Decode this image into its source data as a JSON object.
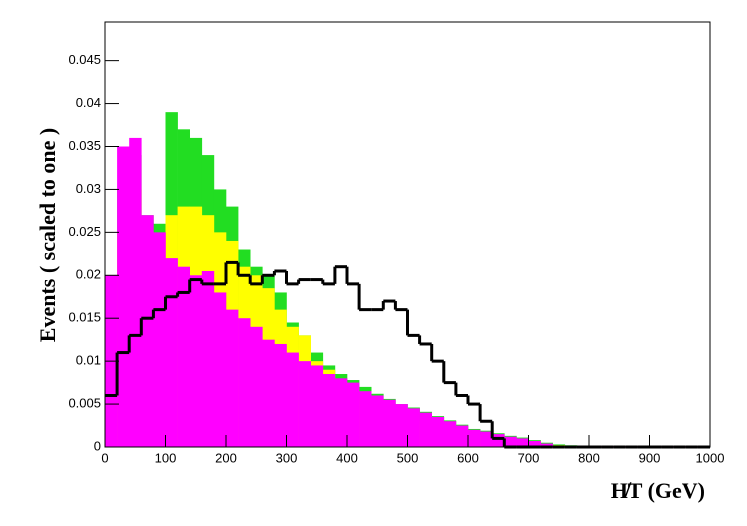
{
  "chart_data": {
    "type": "histogram",
    "y_label": "Events  ( scaled to one )",
    "x_label": "H̸T (GeV)",
    "bins": [
      0,
      20,
      40,
      60,
      80,
      100,
      120,
      140,
      160,
      180,
      200,
      220,
      240,
      260,
      280,
      300,
      320,
      340,
      360,
      380,
      400,
      420,
      440,
      460,
      480,
      500,
      520,
      540,
      560,
      580,
      600,
      620,
      640,
      660,
      680,
      700,
      720,
      740,
      760,
      780,
      800,
      820,
      840,
      860,
      880,
      900,
      920,
      940,
      960,
      980,
      1000
    ],
    "series": [
      {
        "name": "green",
        "color": "#22dd22",
        "style": "fill",
        "values": [
          0.012,
          0.03,
          0.034,
          0.027,
          0.026,
          0.039,
          0.037,
          0.036,
          0.034,
          0.03,
          0.028,
          0.023,
          0.021,
          0.02,
          0.018,
          0.0145,
          0.013,
          0.011,
          0.0095,
          0.0085,
          0.0078,
          0.007,
          0.0062,
          0.0056,
          0.005,
          0.0046,
          0.0041,
          0.0036,
          0.0031,
          0.0026,
          0.0021,
          0.0019,
          0.0016,
          0.0013,
          0.0011,
          0.0008,
          0.0005,
          0.0003,
          0.0002,
          0.0001,
          0.0001,
          0.0001,
          0.0001,
          0.0001,
          0.0001,
          0.0001,
          0.0001,
          0.0001,
          0.0001,
          0.0001
        ]
      },
      {
        "name": "yellow",
        "color": "#ffff00",
        "style": "fill",
        "values": [
          0.01,
          0.025,
          0.03,
          0.024,
          0.023,
          0.027,
          0.028,
          0.028,
          0.027,
          0.025,
          0.024,
          0.021,
          0.02,
          0.0185,
          0.016,
          0.014,
          0.013,
          0.01,
          0.009,
          0.0075,
          0.006,
          0.005,
          0.0045,
          0.004,
          0.0035,
          0.003,
          0.0027,
          0.0023,
          0.002,
          0.0017,
          0.0014,
          0.0012,
          0.001,
          0.0008,
          0.0006,
          0.0004,
          0.0003,
          0.0002,
          0.0001,
          0.0001,
          0.0001,
          0.0001,
          0.0001,
          0.0001,
          0.0001,
          0.0001,
          0.0001,
          0.0001,
          0.0001,
          0.0001
        ]
      },
      {
        "name": "magenta",
        "color": "#ff00ff",
        "style": "fill",
        "values": [
          0.02,
          0.035,
          0.036,
          0.027,
          0.025,
          0.022,
          0.021,
          0.02,
          0.0205,
          0.018,
          0.016,
          0.015,
          0.014,
          0.0125,
          0.012,
          0.011,
          0.01,
          0.0095,
          0.0085,
          0.008,
          0.0075,
          0.0065,
          0.006,
          0.0055,
          0.005,
          0.0045,
          0.004,
          0.0035,
          0.003,
          0.0025,
          0.002,
          0.0018,
          0.0015,
          0.0012,
          0.001,
          0.0007,
          0.0004,
          0.0001,
          0.0001,
          0.0001,
          0.0001,
          0.0001,
          0.0001,
          0.0001,
          0.0001,
          0.0001,
          0.0001,
          0.0001,
          0.0001,
          0.0001
        ]
      },
      {
        "name": "black",
        "color": "#000000",
        "style": "line",
        "values": [
          0.006,
          0.011,
          0.013,
          0.015,
          0.016,
          0.0175,
          0.018,
          0.0195,
          0.019,
          0.019,
          0.0215,
          0.02,
          0.019,
          0.02,
          0.0205,
          0.019,
          0.0195,
          0.0195,
          0.019,
          0.021,
          0.019,
          0.016,
          0.016,
          0.017,
          0.016,
          0.013,
          0.012,
          0.01,
          0.0075,
          0.006,
          0.005,
          0.003,
          0.001,
          0,
          0,
          0,
          0,
          0,
          0,
          0,
          0,
          0,
          0,
          0,
          0,
          0,
          0,
          0,
          0,
          0
        ]
      }
    ],
    "xlim": [
      0,
      1000
    ],
    "ylim": [
      0,
      0.0495
    ],
    "xticks": [
      0,
      100,
      200,
      300,
      400,
      500,
      600,
      700,
      800,
      900,
      1000
    ],
    "yticks": [
      0,
      0.005,
      0.01,
      0.015,
      0.02,
      0.025,
      0.03,
      0.035,
      0.04,
      0.045
    ]
  }
}
